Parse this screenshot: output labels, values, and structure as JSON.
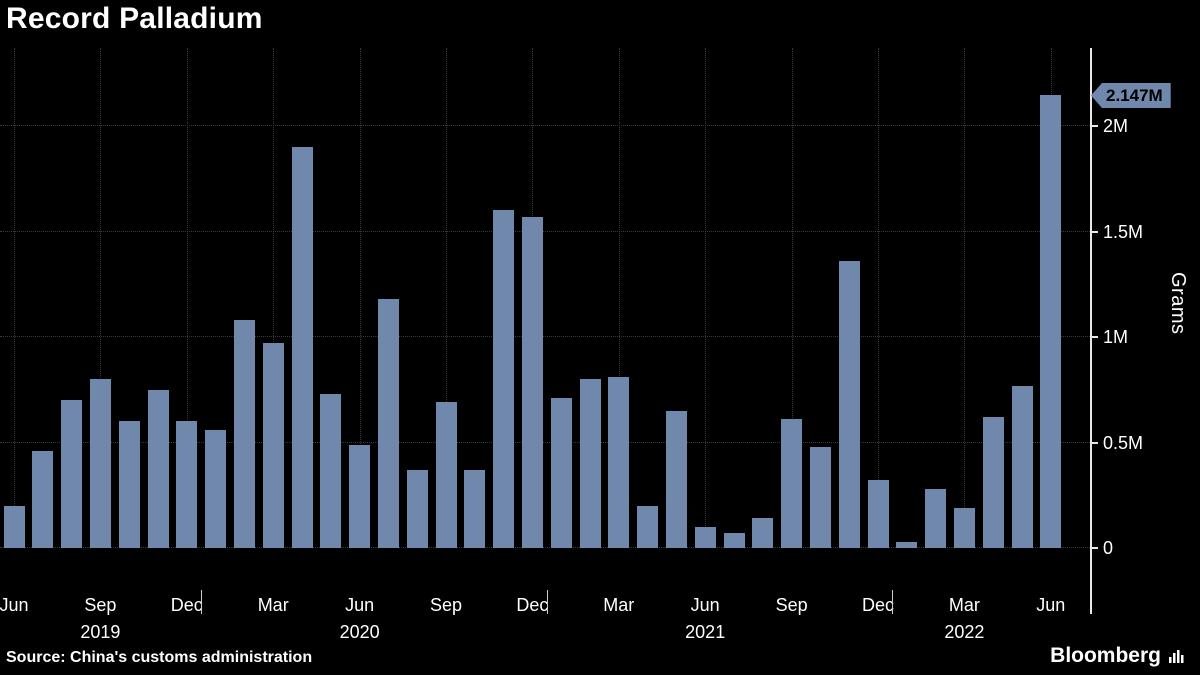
{
  "chart_data": {
    "type": "bar",
    "title": "Record Palladium",
    "ylabel": "Grams",
    "source": "Source: China's customs administration",
    "brand": "Bloomberg",
    "grid": "dotted",
    "legend": "none",
    "ylim": [
      0,
      2.37
    ],
    "colors": {
      "background": "#000000",
      "bar": "#6f88ac",
      "grid": "#3a3a3a",
      "axis": "#e8e8e8",
      "text": "#ffffff",
      "callout_bg": "#6f88ac",
      "callout_text": "#000000"
    },
    "months": [
      "Jun 2019",
      "Jul 2019",
      "Aug 2019",
      "Sep 2019",
      "Oct 2019",
      "Nov 2019",
      "Dec 2019",
      "Jan 2020",
      "Feb 2020",
      "Mar 2020",
      "Apr 2020",
      "May 2020",
      "Jun 2020",
      "Jul 2020",
      "Aug 2020",
      "Sep 2020",
      "Oct 2020",
      "Nov 2020",
      "Dec 2020",
      "Jan 2021",
      "Feb 2021",
      "Mar 2021",
      "Apr 2021",
      "May 2021",
      "Jun 2021",
      "Jul 2021",
      "Aug 2021",
      "Sep 2021",
      "Oct 2021",
      "Nov 2021",
      "Dec 2021",
      "Jan 2022",
      "Feb 2022",
      "Mar 2022",
      "Apr 2022",
      "May 2022",
      "Jun 2022"
    ],
    "values_millions_grams": [
      0.2,
      0.46,
      0.7,
      0.8,
      0.6,
      0.75,
      0.6,
      0.56,
      1.08,
      0.97,
      1.9,
      0.73,
      0.49,
      1.18,
      0.37,
      0.69,
      0.37,
      1.6,
      1.57,
      0.71,
      0.8,
      0.81,
      0.2,
      0.65,
      0.1,
      0.07,
      0.14,
      0.61,
      0.48,
      1.36,
      0.32,
      0.03,
      0.28,
      0.19,
      0.62,
      0.77,
      2.147
    ],
    "yticks": [
      {
        "value": 0,
        "label": "0"
      },
      {
        "value": 0.5,
        "label": "0.5M"
      },
      {
        "value": 1,
        "label": "1M"
      },
      {
        "value": 1.5,
        "label": "1.5M"
      },
      {
        "value": 2,
        "label": "2M"
      }
    ],
    "xticks": [
      {
        "index": 0,
        "label": "Jun",
        "year": ""
      },
      {
        "index": 3,
        "label": "Sep",
        "year": "2019"
      },
      {
        "index": 6,
        "label": "Dec",
        "year": ""
      },
      {
        "index": 9,
        "label": "Mar",
        "year": ""
      },
      {
        "index": 12,
        "label": "Jun",
        "year": "2020"
      },
      {
        "index": 15,
        "label": "Sep",
        "year": ""
      },
      {
        "index": 18,
        "label": "Dec",
        "year": ""
      },
      {
        "index": 21,
        "label": "Mar",
        "year": ""
      },
      {
        "index": 24,
        "label": "Jun",
        "year": "2021"
      },
      {
        "index": 27,
        "label": "Sep",
        "year": ""
      },
      {
        "index": 30,
        "label": "Dec",
        "year": ""
      },
      {
        "index": 33,
        "label": "Mar",
        "year": "2022"
      },
      {
        "index": 36,
        "label": "Jun",
        "year": ""
      }
    ],
    "callout": {
      "value": 2.147,
      "label": "2.147M"
    }
  }
}
